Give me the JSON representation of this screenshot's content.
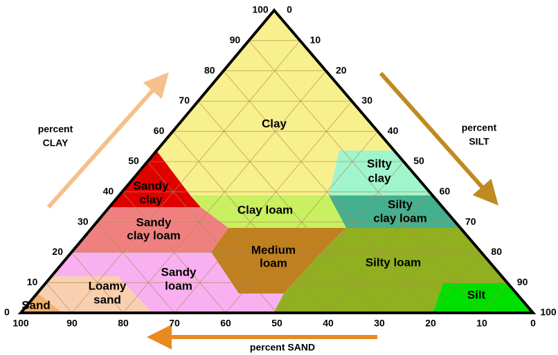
{
  "clay_axis": {
    "label": [
      "percent",
      "CLAY"
    ],
    "ticks": [
      100,
      90,
      80,
      70,
      60,
      50,
      40,
      30,
      20,
      10,
      0
    ]
  },
  "silt_axis": {
    "label": [
      "percent",
      "SILT"
    ],
    "ticks": [
      0,
      10,
      20,
      30,
      40,
      50,
      60,
      70,
      80,
      90,
      100
    ]
  },
  "sand_axis": {
    "label": [
      "percent SAND"
    ],
    "ticks": [
      100,
      90,
      80,
      70,
      60,
      50,
      40,
      30,
      20,
      10,
      0
    ]
  },
  "regions": [
    {
      "label": [
        "Clay"
      ]
    },
    {
      "label": [
        "Silty",
        "clay"
      ]
    },
    {
      "label": [
        "Silty",
        "clay loam"
      ]
    },
    {
      "label": [
        "Sandy",
        "clay"
      ]
    },
    {
      "label": [
        "Clay loam"
      ]
    },
    {
      "label": [
        "Sandy",
        "clay loam"
      ]
    },
    {
      "label": [
        "Medium",
        "loam"
      ]
    },
    {
      "label": [
        "Silty loam"
      ]
    },
    {
      "label": [
        "Sandy",
        "loam"
      ]
    },
    {
      "label": [
        "Loamy",
        "sand"
      ]
    },
    {
      "label": [
        "Sand"
      ]
    },
    {
      "label": [
        "Silt"
      ]
    }
  ]
}
